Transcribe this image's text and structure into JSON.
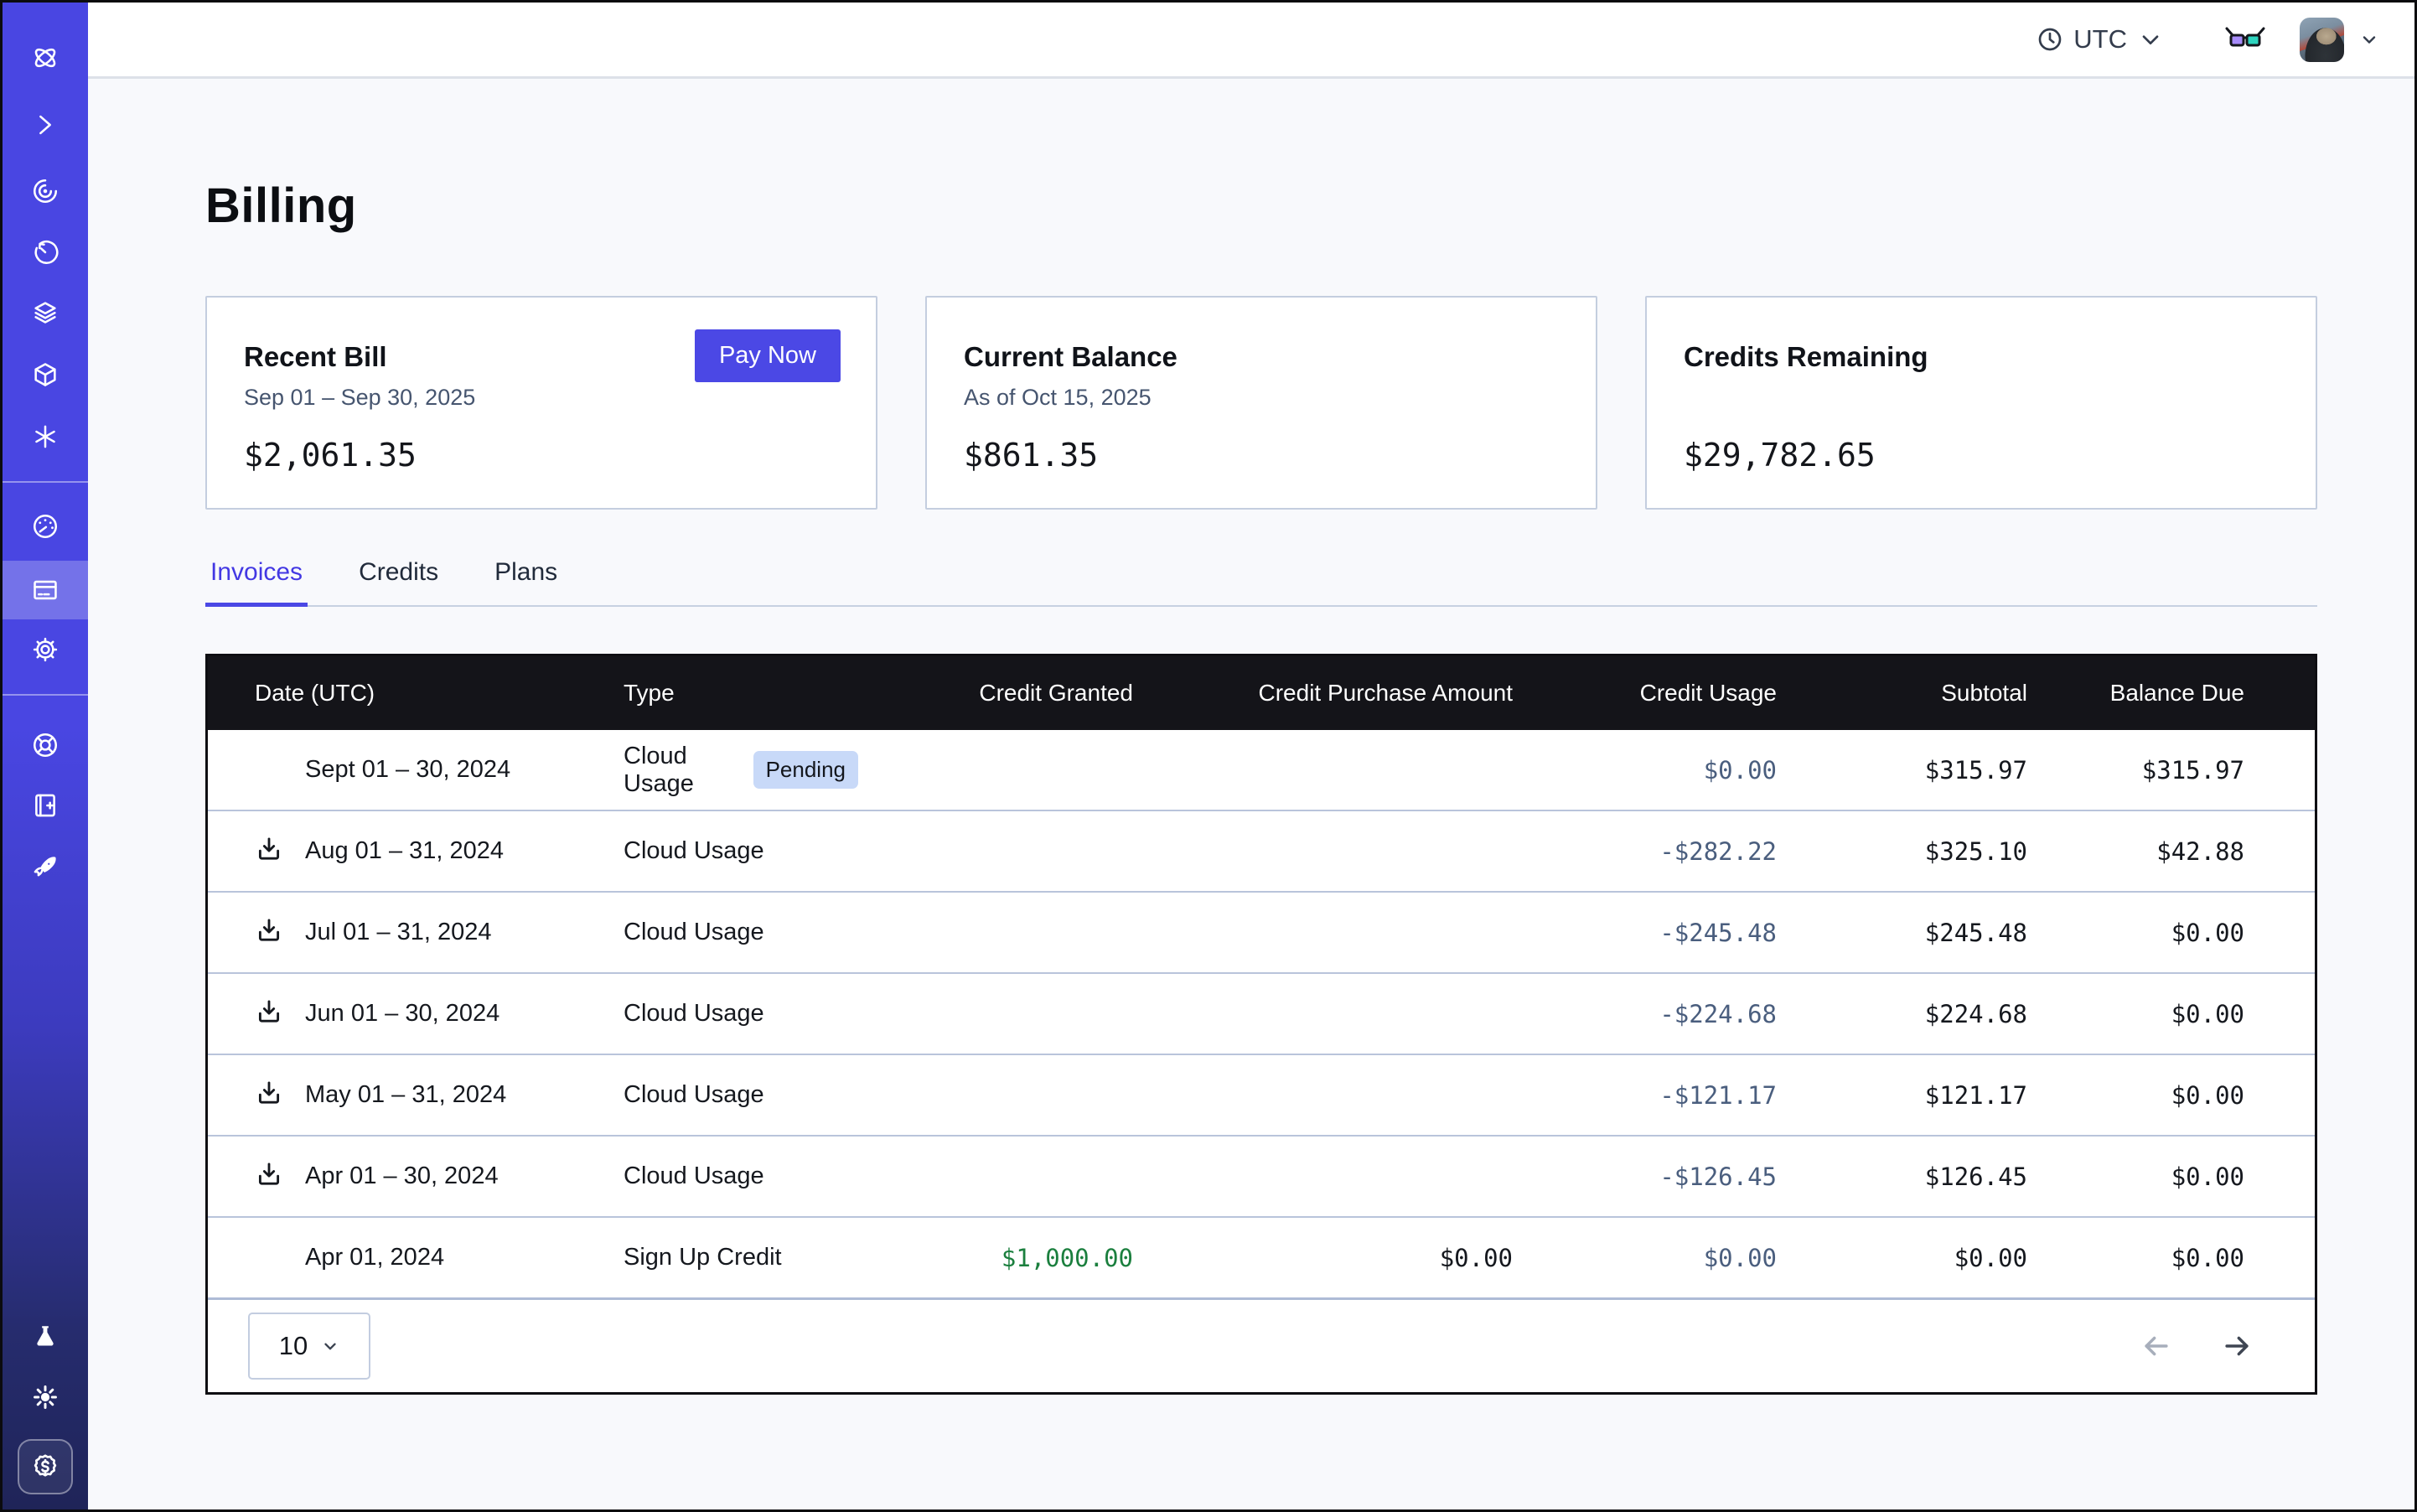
{
  "topbar": {
    "timezone": "UTC"
  },
  "page": {
    "title": "Billing"
  },
  "cards": [
    {
      "title": "Recent Bill",
      "subtitle": "Sep 01 – Sep 30, 2025",
      "amount": "$2,061.35",
      "action": "Pay Now"
    },
    {
      "title": "Current Balance",
      "subtitle": "As of Oct 15, 2025",
      "amount": "$861.35"
    },
    {
      "title": "Credits Remaining",
      "subtitle": "",
      "amount": "$29,782.65"
    }
  ],
  "tabs": [
    {
      "label": "Invoices",
      "active": true
    },
    {
      "label": "Credits",
      "active": false
    },
    {
      "label": "Plans",
      "active": false
    }
  ],
  "table": {
    "columns": [
      "Date (UTC)",
      "Type",
      "Credit Granted",
      "Credit Purchase Amount",
      "Credit Usage",
      "Subtotal",
      "Balance Due"
    ],
    "rows": [
      {
        "download": false,
        "date": "Sept 01 – 30, 2024",
        "type": "Cloud Usage",
        "badge": "Pending",
        "granted": "",
        "granted_green": false,
        "purchase": "",
        "usage": "$0.00",
        "subtotal": "$315.97",
        "balance": "$315.97"
      },
      {
        "download": true,
        "date": "Aug 01 – 31, 2024",
        "type": "Cloud Usage",
        "badge": "",
        "granted": "",
        "granted_green": false,
        "purchase": "",
        "usage": "-$282.22",
        "subtotal": "$325.10",
        "balance": "$42.88"
      },
      {
        "download": true,
        "date": "Jul 01 – 31, 2024",
        "type": "Cloud Usage",
        "badge": "",
        "granted": "",
        "granted_green": false,
        "purchase": "",
        "usage": "-$245.48",
        "subtotal": "$245.48",
        "balance": "$0.00"
      },
      {
        "download": true,
        "date": "Jun 01 – 30, 2024",
        "type": "Cloud Usage",
        "badge": "",
        "granted": "",
        "granted_green": false,
        "purchase": "",
        "usage": "-$224.68",
        "subtotal": "$224.68",
        "balance": "$0.00"
      },
      {
        "download": true,
        "date": "May 01 – 31, 2024",
        "type": "Cloud Usage",
        "badge": "",
        "granted": "",
        "granted_green": false,
        "purchase": "",
        "usage": "-$121.17",
        "subtotal": "$121.17",
        "balance": "$0.00"
      },
      {
        "download": true,
        "date": "Apr 01 – 30, 2024",
        "type": "Cloud Usage",
        "badge": "",
        "granted": "",
        "granted_green": false,
        "purchase": "",
        "usage": "-$126.45",
        "subtotal": "$126.45",
        "balance": "$0.00"
      },
      {
        "download": false,
        "date": "Apr 01, 2024",
        "type": "Sign Up Credit",
        "badge": "",
        "granted": "$1,000.00",
        "granted_green": true,
        "purchase": "$0.00",
        "usage": "$0.00",
        "subtotal": "$0.00",
        "balance": "$0.00"
      }
    ],
    "pagination": {
      "page_size": "10"
    }
  },
  "colors": {
    "sidebar_top": "#4946E2",
    "sidebar_bottom": "#1F2458",
    "accent": "#4B48E5",
    "header_bg": "#141419",
    "usage_text": "#4A5E7E",
    "credit_green": "#1B7F3E",
    "badge_bg": "#C8D9F8",
    "page_bg": "#F8F9FC"
  }
}
